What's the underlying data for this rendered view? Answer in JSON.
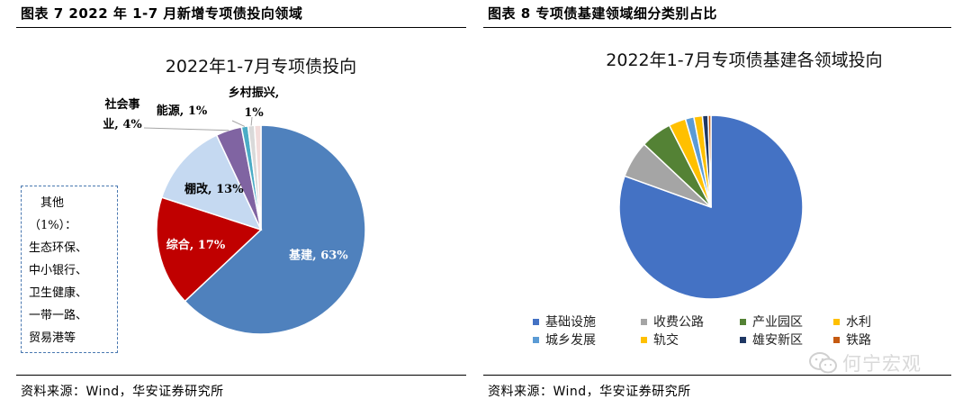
{
  "left_panel": {
    "figure_caption": "图表 7 2022 年 1-7 月新增专项债投向领域",
    "source": "资料来源：Wind，华安证券研究所",
    "note_lines": [
      "其他",
      "（1%）：",
      "生态环保、",
      "中小银行、",
      "卫生健康、",
      "一带一路、",
      "贸易港等"
    ]
  },
  "right_panel": {
    "figure_caption": "图表 8 专项债基建领域细分类别占比",
    "source": "资料来源：Wind，华安证券研究所"
  },
  "watermark": {
    "text": "何宁宏观",
    "icon": "wechat-icon"
  },
  "chart_data": [
    {
      "type": "pie",
      "title": "2022年1-7月专项债投向",
      "slices": [
        {
          "label": "基建",
          "value": 63,
          "display": "基建, 63%",
          "color": "#4f81bd"
        },
        {
          "label": "综合",
          "value": 17,
          "display": "综合, 17%",
          "color": "#c00000"
        },
        {
          "label": "棚改",
          "value": 13,
          "display": "棚改, 13%",
          "color": "#c5d9f1"
        },
        {
          "label": "社会事业",
          "value": 4,
          "display": "社会事业, 4%",
          "color": "#8064a2"
        },
        {
          "label": "能源",
          "value": 1,
          "display": "能源, 1%",
          "color": "#4bacc6"
        },
        {
          "label": "乡村振兴",
          "value": 1,
          "display": "乡村振兴, 1%",
          "color": "#d9d9d9"
        },
        {
          "label": "其他",
          "value": 1,
          "display": "",
          "color": "#f2dcdb"
        }
      ]
    },
    {
      "type": "pie",
      "title": "2022年1-7月专项债基建各领域投向",
      "legend_position": "bottom",
      "slices": [
        {
          "label": "基础设施",
          "value": 80.5,
          "color": "#4472c4"
        },
        {
          "label": "收费公路",
          "value": 6.5,
          "color": "#a5a5a5"
        },
        {
          "label": "产业园区",
          "value": 5.5,
          "color": "#548235"
        },
        {
          "label": "水利",
          "value": 3,
          "color": "#ffc000"
        },
        {
          "label": "城乡发展",
          "value": 1.5,
          "color": "#5b9bd5"
        },
        {
          "label": "轨交",
          "value": 1.5,
          "color": "#ffc000"
        },
        {
          "label": "雄安新区",
          "value": 1,
          "color": "#1f3864"
        },
        {
          "label": "铁路",
          "value": 0.5,
          "color": "#c55a11"
        }
      ]
    }
  ]
}
